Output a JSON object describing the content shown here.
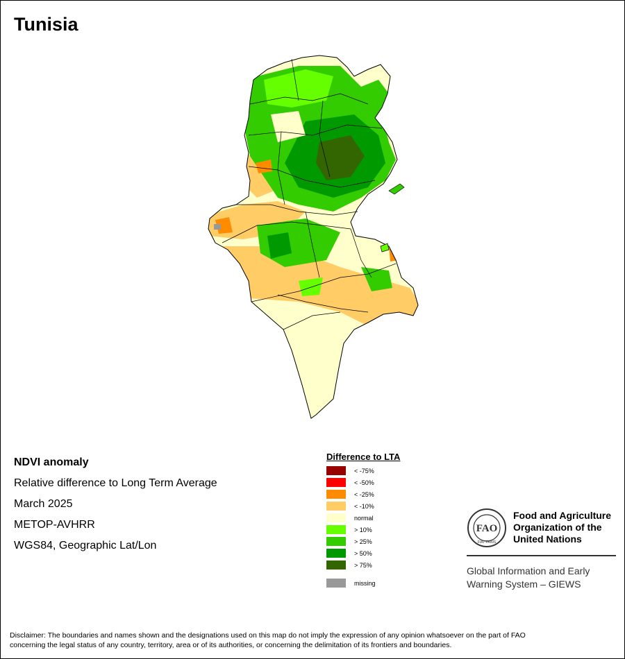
{
  "title": "Tunisia",
  "info": {
    "heading": "NDVI anomaly",
    "line1": "Relative difference to Long Term Average",
    "line2": "March 2025",
    "line3": "METOP-AVHRR",
    "line4": "WGS84, Geographic Lat/Lon"
  },
  "legend": {
    "title": "Difference to LTA",
    "items": [
      {
        "label": "< -75%",
        "color": "#990000"
      },
      {
        "label": "< -50%",
        "color": "#ff0000"
      },
      {
        "label": "< -25%",
        "color": "#ff8c00"
      },
      {
        "label": "< -10%",
        "color": "#ffcc66"
      },
      {
        "label": "normal",
        "color": "#ffffcc"
      },
      {
        "label": "> 10%",
        "color": "#66ff00"
      },
      {
        "label": "> 25%",
        "color": "#33cc00"
      },
      {
        "label": "> 50%",
        "color": "#009900"
      },
      {
        "label": "> 75%",
        "color": "#336600"
      }
    ],
    "missing": {
      "label": "missing",
      "color": "#999999"
    }
  },
  "fao": {
    "name_line1": "Food and Agriculture",
    "name_line2": "Organization of the",
    "name_line3": "United Nations",
    "giews_line1": "Global Information and Early",
    "giews_line2": "Warning System – GIEWS",
    "logo_letters": "FAO",
    "logo_motto": "FIAT PANIS"
  },
  "disclaimer": {
    "line1": "Disclaimer: The boundaries and names shown and the designations used on this map do not imply the expression of any opinion whatsoever on the part of FAO",
    "line2": "concerning the legal status of any country, territory, area or of its authorities, or concerning the delimitation of its frontiers and boundaries."
  }
}
